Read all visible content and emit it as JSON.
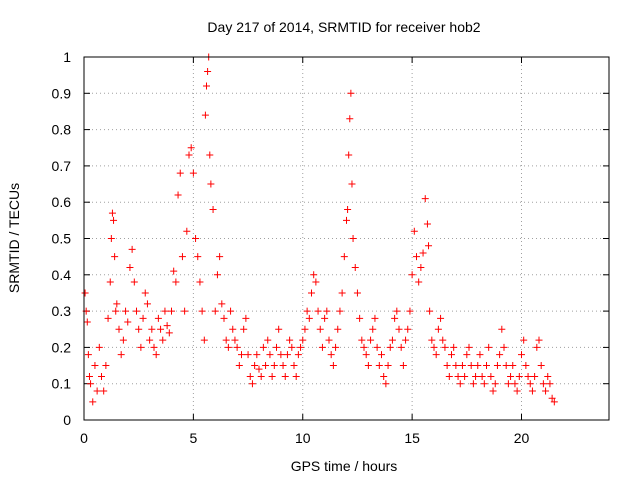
{
  "chart_data": {
    "type": "scatter",
    "title": "Day 217 of 2014, SRMTID for receiver hob2",
    "xlabel": "GPS time / hours",
    "ylabel": "SRMTID / TECUs",
    "xlim": [
      0,
      24
    ],
    "ylim": [
      0,
      1
    ],
    "xticks": [
      "0",
      "5",
      "10",
      "15",
      "20"
    ],
    "xtick_values": [
      0,
      5,
      10,
      15,
      20
    ],
    "yticks": [
      "0",
      "0.1",
      "0.2",
      "0.3",
      "0.4",
      "0.5",
      "0.6",
      "0.7",
      "0.8",
      "0.9",
      "1"
    ],
    "ytick_values": [
      0,
      0.1,
      0.2,
      0.3,
      0.4,
      0.5,
      0.6,
      0.7,
      0.8,
      0.9,
      1.0
    ],
    "grid": true,
    "marker": "+",
    "color": "#ff0000",
    "series": [
      {
        "name": "SRMTID",
        "x": [
          0.05,
          0.1,
          0.15,
          0.2,
          0.25,
          0.3,
          0.4,
          0.5,
          0.6,
          0.7,
          0.8,
          0.9,
          1.0,
          1.1,
          1.2,
          1.25,
          1.3,
          1.35,
          1.4,
          1.45,
          1.5,
          1.6,
          1.7,
          1.8,
          1.9,
          2.0,
          2.1,
          2.2,
          2.3,
          2.4,
          2.5,
          2.6,
          2.7,
          2.8,
          2.9,
          3.0,
          3.1,
          3.2,
          3.3,
          3.4,
          3.5,
          3.6,
          3.7,
          3.8,
          3.9,
          4.0,
          4.1,
          4.2,
          4.3,
          4.4,
          4.5,
          4.6,
          4.7,
          4.8,
          4.9,
          5.0,
          5.1,
          5.2,
          5.3,
          5.4,
          5.5,
          5.55,
          5.6,
          5.65,
          5.7,
          5.75,
          5.8,
          5.9,
          6.0,
          6.1,
          6.2,
          6.3,
          6.4,
          6.5,
          6.6,
          6.7,
          6.8,
          6.9,
          7.0,
          7.1,
          7.2,
          7.3,
          7.4,
          7.5,
          7.6,
          7.7,
          7.8,
          7.9,
          8.0,
          8.1,
          8.2,
          8.3,
          8.4,
          8.5,
          8.6,
          8.7,
          8.8,
          8.9,
          9.0,
          9.1,
          9.2,
          9.3,
          9.4,
          9.5,
          9.6,
          9.7,
          9.8,
          9.9,
          10.0,
          10.1,
          10.2,
          10.3,
          10.4,
          10.5,
          10.6,
          10.7,
          10.8,
          10.9,
          11.0,
          11.1,
          11.2,
          11.3,
          11.4,
          11.5,
          11.6,
          11.7,
          11.8,
          11.9,
          12.0,
          12.05,
          12.1,
          12.15,
          12.2,
          12.25,
          12.3,
          12.4,
          12.5,
          12.6,
          12.7,
          12.8,
          12.9,
          13.0,
          13.1,
          13.2,
          13.3,
          13.4,
          13.5,
          13.6,
          13.7,
          13.8,
          13.9,
          14.0,
          14.1,
          14.2,
          14.3,
          14.4,
          14.5,
          14.6,
          14.7,
          14.8,
          14.9,
          15.0,
          15.1,
          15.2,
          15.3,
          15.4,
          15.5,
          15.6,
          15.7,
          15.75,
          15.8,
          15.9,
          16.0,
          16.1,
          16.2,
          16.3,
          16.4,
          16.5,
          16.6,
          16.7,
          16.8,
          16.9,
          17.0,
          17.1,
          17.2,
          17.3,
          17.4,
          17.5,
          17.6,
          17.7,
          17.8,
          17.9,
          18.0,
          18.1,
          18.2,
          18.3,
          18.4,
          18.5,
          18.6,
          18.7,
          18.8,
          18.9,
          19.0,
          19.1,
          19.2,
          19.3,
          19.4,
          19.5,
          19.6,
          19.7,
          19.8,
          19.9,
          20.0,
          20.1,
          20.2,
          20.3,
          20.4,
          20.5,
          20.6,
          20.7,
          20.8,
          20.9,
          21.0,
          21.1,
          21.2,
          21.3,
          21.4,
          21.5
        ],
        "y": [
          0.35,
          0.3,
          0.27,
          0.18,
          0.12,
          0.1,
          0.05,
          0.15,
          0.08,
          0.2,
          0.12,
          0.08,
          0.15,
          0.28,
          0.38,
          0.5,
          0.57,
          0.55,
          0.45,
          0.3,
          0.32,
          0.25,
          0.18,
          0.22,
          0.3,
          0.27,
          0.42,
          0.47,
          0.38,
          0.3,
          0.25,
          0.2,
          0.28,
          0.35,
          0.32,
          0.22,
          0.25,
          0.2,
          0.18,
          0.28,
          0.25,
          0.22,
          0.3,
          0.26,
          0.24,
          0.3,
          0.41,
          0.38,
          0.62,
          0.68,
          0.45,
          0.3,
          0.52,
          0.73,
          0.75,
          0.68,
          0.5,
          0.45,
          0.38,
          0.3,
          0.22,
          0.84,
          0.92,
          0.96,
          1.0,
          0.73,
          0.65,
          0.58,
          0.3,
          0.4,
          0.45,
          0.32,
          0.28,
          0.22,
          0.2,
          0.3,
          0.25,
          0.22,
          0.2,
          0.15,
          0.18,
          0.25,
          0.28,
          0.18,
          0.12,
          0.1,
          0.15,
          0.18,
          0.14,
          0.12,
          0.2,
          0.15,
          0.22,
          0.18,
          0.12,
          0.15,
          0.2,
          0.25,
          0.18,
          0.15,
          0.12,
          0.18,
          0.22,
          0.2,
          0.15,
          0.12,
          0.18,
          0.2,
          0.22,
          0.25,
          0.3,
          0.28,
          0.35,
          0.4,
          0.38,
          0.3,
          0.25,
          0.2,
          0.28,
          0.3,
          0.22,
          0.18,
          0.15,
          0.2,
          0.25,
          0.3,
          0.35,
          0.45,
          0.55,
          0.58,
          0.73,
          0.83,
          0.9,
          0.65,
          0.5,
          0.42,
          0.35,
          0.28,
          0.22,
          0.2,
          0.18,
          0.15,
          0.22,
          0.25,
          0.28,
          0.2,
          0.15,
          0.18,
          0.12,
          0.1,
          0.15,
          0.2,
          0.22,
          0.28,
          0.3,
          0.25,
          0.2,
          0.15,
          0.22,
          0.25,
          0.3,
          0.4,
          0.52,
          0.45,
          0.38,
          0.42,
          0.46,
          0.61,
          0.54,
          0.48,
          0.3,
          0.22,
          0.2,
          0.18,
          0.25,
          0.28,
          0.22,
          0.2,
          0.15,
          0.12,
          0.18,
          0.2,
          0.15,
          0.12,
          0.1,
          0.15,
          0.12,
          0.18,
          0.2,
          0.15,
          0.1,
          0.12,
          0.15,
          0.18,
          0.12,
          0.1,
          0.15,
          0.2,
          0.12,
          0.08,
          0.1,
          0.15,
          0.18,
          0.25,
          0.2,
          0.15,
          0.1,
          0.12,
          0.15,
          0.1,
          0.08,
          0.12,
          0.18,
          0.22,
          0.15,
          0.12,
          0.1,
          0.08,
          0.12,
          0.2,
          0.22,
          0.15,
          0.1,
          0.08,
          0.12,
          0.1,
          0.06,
          0.05
        ]
      }
    ]
  }
}
